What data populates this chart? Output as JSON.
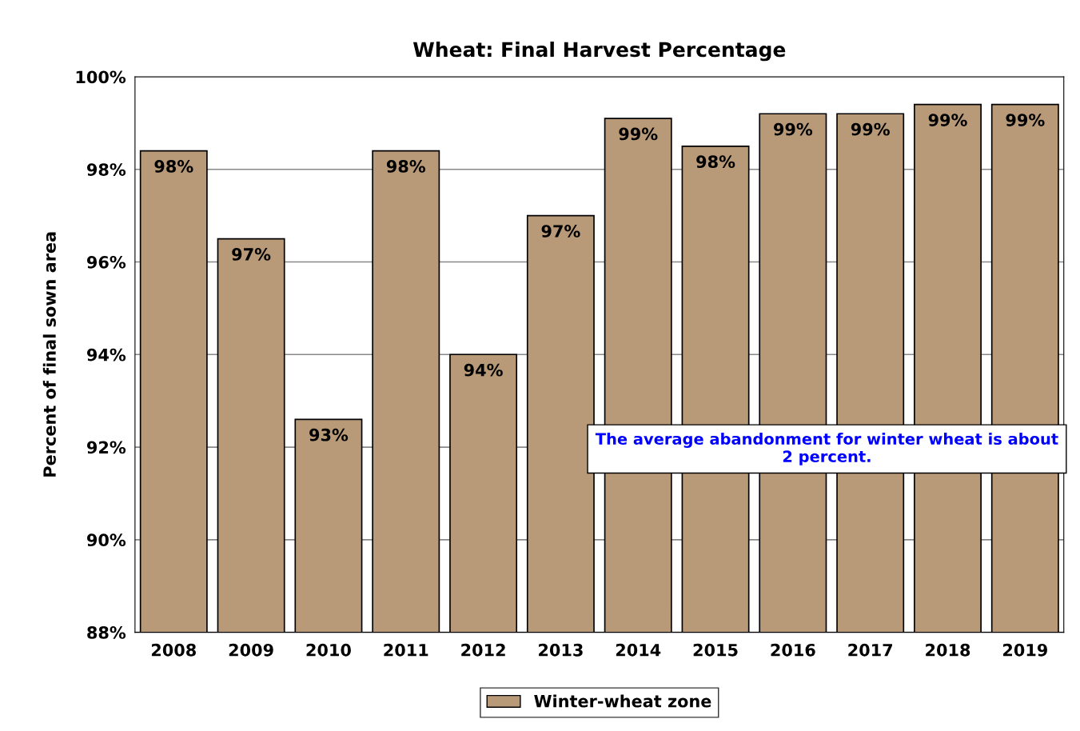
{
  "chart_data": {
    "type": "bar",
    "title": "Wheat: Final Harvest Percentage",
    "ylabel": "Percent of final sown area",
    "categories": [
      "2008",
      "2009",
      "2010",
      "2011",
      "2012",
      "2013",
      "2014",
      "2015",
      "2016",
      "2017",
      "2018",
      "2019"
    ],
    "series": [
      {
        "name": "Winter-wheat zone",
        "color": "#b89a78",
        "values": [
          98.4,
          96.5,
          92.6,
          98.4,
          94.0,
          97.0,
          99.1,
          98.5,
          99.2,
          99.2,
          99.4,
          99.4
        ],
        "value_labels": [
          "98%",
          "97%",
          "93%",
          "98%",
          "94%",
          "97%",
          "99%",
          "98%",
          "99%",
          "99%",
          "99%",
          "99%"
        ]
      }
    ],
    "ylim": [
      88,
      100
    ],
    "yticks": [
      {
        "value": 88,
        "label": "88%"
      },
      {
        "value": 90,
        "label": "90%"
      },
      {
        "value": 92,
        "label": "92%"
      },
      {
        "value": 94,
        "label": "94%"
      },
      {
        "value": 96,
        "label": "96%"
      },
      {
        "value": 98,
        "label": "98%"
      },
      {
        "value": 100,
        "label": "100%"
      }
    ],
    "grid": "y",
    "legend": "bottom",
    "annotations": [
      "The average abandonment for winter wheat is about 2 percent."
    ]
  }
}
